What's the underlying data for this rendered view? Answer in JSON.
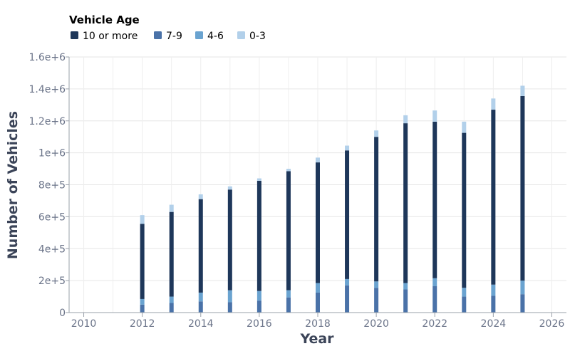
{
  "chart_data": {
    "type": "bar",
    "stacked": true,
    "xlabel": "Year",
    "ylabel": "Number of Vehicles",
    "xlim": [
      2009.5,
      2026.5
    ],
    "ylim": [
      0,
      1600000
    ],
    "x_ticks": [
      "2010",
      "2012",
      "2014",
      "2016",
      "2018",
      "2020",
      "2022",
      "2024",
      "2026"
    ],
    "y_ticks": [
      "0",
      "2e+5",
      "4e+5",
      "6e+5",
      "8e+5",
      "1e+6",
      "1.2e+6",
      "1.4e+6",
      "1.6e+6"
    ],
    "grid": true,
    "legend": {
      "title": "Vehicle Age",
      "position": "top-left",
      "entries": [
        "10 or more",
        "7-9",
        "4-6",
        "0-3"
      ]
    },
    "x": [
      2012,
      2013,
      2014,
      2015,
      2016,
      2017,
      2018,
      2019,
      2020,
      2021,
      2022,
      2023,
      2024,
      2025
    ],
    "series": [
      {
        "name": "7-9",
        "color": "#4a72a8",
        "values": [
          50000,
          60000,
          70000,
          65000,
          75000,
          95000,
          125000,
          170000,
          155000,
          145000,
          165000,
          100000,
          105000,
          115000
        ]
      },
      {
        "name": "4-6",
        "color": "#6aa3d0",
        "values": [
          35000,
          40000,
          55000,
          75000,
          60000,
          45000,
          60000,
          40000,
          40000,
          40000,
          50000,
          55000,
          70000,
          85000
        ]
      },
      {
        "name": "10 or more",
        "color": "#1e375a",
        "values": [
          470000,
          530000,
          585000,
          630000,
          690000,
          745000,
          755000,
          805000,
          905000,
          1000000,
          980000,
          970000,
          1095000,
          1155000
        ]
      },
      {
        "name": "0-3",
        "color": "#b2d0ea",
        "values": [
          55000,
          45000,
          30000,
          20000,
          15000,
          15000,
          30000,
          30000,
          40000,
          50000,
          70000,
          70000,
          70000,
          65000
        ]
      }
    ],
    "legend_colors": [
      "#1e375a",
      "#4a72a8",
      "#6aa3d0",
      "#b2d0ea"
    ]
  }
}
